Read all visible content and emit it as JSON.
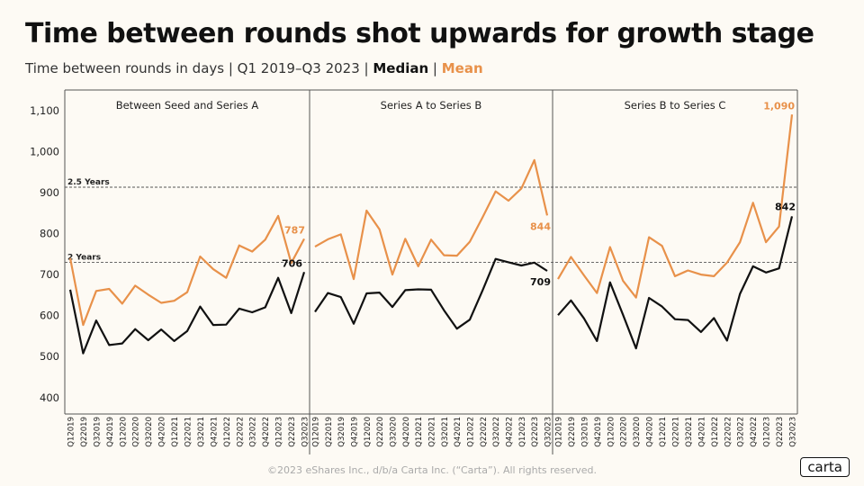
{
  "header": {
    "title": "Time between rounds shot upwards for growth stage",
    "subtitle_prefix": "Time between rounds in days | Q1 2019–Q3 2023 | ",
    "median_label": "Median",
    "separator": " | ",
    "mean_label": "Mean"
  },
  "footer": {
    "copyright": "©2023 eShares Inc., d/b/a Carta Inc. (“Carta”). All rights reserved.",
    "logo": "carta"
  },
  "colors": {
    "median": "#111111",
    "mean": "#e8914a",
    "background": "#fdfaf4"
  },
  "chart_data": {
    "type": "line",
    "ylim": [
      360,
      1150
    ],
    "yticks": [
      400,
      500,
      600,
      700,
      800,
      900,
      1000,
      1100
    ],
    "ytick_labels": [
      "400",
      "500",
      "600",
      "700",
      "800",
      "900",
      "1,000",
      "1,100"
    ],
    "reference_lines": [
      {
        "label": "2.5 Years",
        "value": 913
      },
      {
        "label": "2 Years",
        "value": 730
      }
    ],
    "panels": [
      {
        "title": "Between Seed and Series A",
        "categories": [
          "Q1 2019",
          "Q2 2019",
          "Q3 2019",
          "Q4 2019",
          "Q1 2020",
          "Q2 2020",
          "Q3 2020",
          "Q4 2020",
          "Q1 2021",
          "Q2 2021",
          "Q3 2021",
          "Q4 2021",
          "Q1 2022",
          "Q2 2022",
          "Q3 2022",
          "Q4 2022",
          "Q1 2023",
          "Q2 2023",
          "Q3 2023"
        ],
        "median": [
          663,
          508,
          588,
          528,
          532,
          567,
          540,
          566,
          538,
          562,
          622,
          577,
          578,
          617,
          608,
          620,
          692,
          606,
          706
        ],
        "mean": [
          740,
          577,
          660,
          665,
          629,
          673,
          651,
          631,
          636,
          657,
          744,
          713,
          692,
          771,
          756,
          785,
          843,
          728,
          787
        ],
        "end_labels": {
          "median": "706",
          "mean": "787"
        }
      },
      {
        "title": "Series A to Series B",
        "categories": [
          "Q1 2019",
          "Q2 2019",
          "Q3 2019",
          "Q4 2019",
          "Q1 2020",
          "Q2 2020",
          "Q3 2020",
          "Q4 2020",
          "Q1 2021",
          "Q2 2021",
          "Q3 2021",
          "Q4 2021",
          "Q1 2022",
          "Q2 2022",
          "Q3 2022",
          "Q4 2022",
          "Q1 2023",
          "Q2 2023",
          "Q3 2023"
        ],
        "median": [
          609,
          655,
          645,
          580,
          654,
          656,
          621,
          662,
          664,
          663,
          613,
          568,
          590,
          662,
          738,
          730,
          722,
          729,
          709
        ],
        "mean": [
          768,
          786,
          798,
          689,
          856,
          810,
          700,
          787,
          720,
          785,
          747,
          746,
          780,
          840,
          903,
          880,
          910,
          979,
          844
        ],
        "end_labels": {
          "median": "709",
          "mean": "844"
        }
      },
      {
        "title": "Series B to Series C",
        "categories": [
          "Q1 2019",
          "Q2 2019",
          "Q3 2019",
          "Q4 2019",
          "Q1 2020",
          "Q2 2020",
          "Q3 2020",
          "Q4 2020",
          "Q1 2021",
          "Q2 2021",
          "Q3 2021",
          "Q4 2021",
          "Q1 2022",
          "Q2 2022",
          "Q3 2022",
          "Q4 2022",
          "Q1 2023",
          "Q2 2023",
          "Q3 2023"
        ],
        "median": [
          601,
          637,
          593,
          538,
          681,
          602,
          520,
          643,
          622,
          591,
          589,
          560,
          594,
          539,
          653,
          720,
          705,
          715,
          842
        ],
        "mean": [
          689,
          743,
          698,
          655,
          767,
          685,
          644,
          791,
          770,
          696,
          710,
          700,
          696,
          729,
          779,
          875,
          779,
          817,
          1090
        ],
        "end_labels": {
          "median": "842",
          "mean": "1,090"
        }
      }
    ]
  }
}
